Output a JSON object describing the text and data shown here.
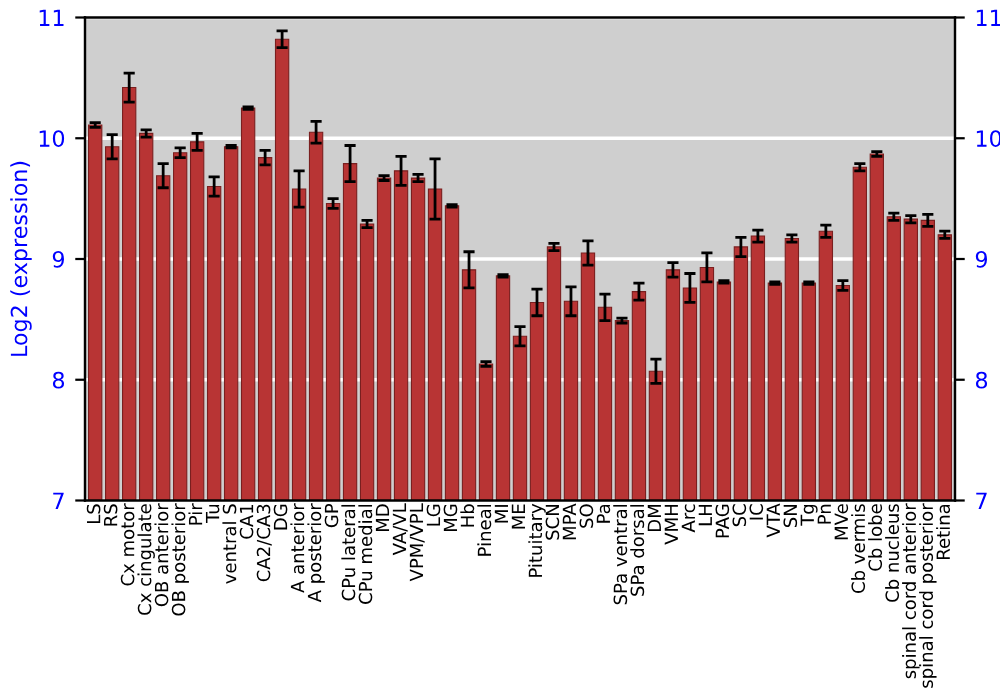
{
  "chart_data": {
    "type": "bar",
    "ylabel": "Log2 (expression)",
    "categories": [
      "LS",
      "RS",
      "Cx motor",
      "Cx cingulate",
      "OB anterior",
      "OB posterior",
      "Pir",
      "Tu",
      "ventral S",
      "CA1",
      "CA2/CA3",
      "DG",
      "A anterior",
      "A posterior",
      "GP",
      "CPu lateral",
      "CPu medial",
      "MD",
      "VA/VL",
      "VPM/VPL",
      "LG",
      "MG",
      "Hb",
      "Pineal",
      "MI",
      "ME",
      "Pituitary",
      "SCN",
      "MPA",
      "SO",
      "Pa",
      "SPa ventral",
      "SPa dorsal",
      "DM",
      "VMH",
      "Arc",
      "LH",
      "PAG",
      "SC",
      "IC",
      "VTA",
      "SN",
      "Tg",
      "Pn",
      "MVe",
      "Cb vermis",
      "Cb lobe",
      "Cb nucleus",
      "spinal cord anterior",
      "spinal cord posterior",
      "Retina"
    ],
    "values": [
      10.11,
      9.93,
      10.42,
      10.04,
      9.69,
      9.88,
      9.97,
      9.6,
      9.93,
      10.25,
      9.84,
      10.82,
      9.58,
      10.05,
      9.46,
      9.79,
      9.29,
      9.67,
      9.73,
      9.67,
      9.58,
      9.44,
      8.91,
      8.13,
      8.86,
      8.36,
      8.64,
      9.1,
      8.65,
      9.05,
      8.6,
      8.49,
      8.73,
      8.07,
      8.91,
      8.76,
      8.93,
      8.81,
      9.1,
      9.19,
      8.8,
      9.17,
      8.8,
      9.23,
      8.78,
      9.76,
      9.87,
      9.35,
      9.33,
      9.32,
      9.2
    ],
    "errors": [
      0.02,
      0.1,
      0.12,
      0.03,
      0.1,
      0.04,
      0.07,
      0.08,
      0.01,
      0.01,
      0.06,
      0.07,
      0.15,
      0.09,
      0.04,
      0.15,
      0.03,
      0.02,
      0.12,
      0.03,
      0.25,
      0.01,
      0.15,
      0.02,
      0.01,
      0.08,
      0.11,
      0.03,
      0.12,
      0.1,
      0.11,
      0.02,
      0.07,
      0.1,
      0.06,
      0.12,
      0.12,
      0.01,
      0.08,
      0.05,
      0.01,
      0.03,
      0.01,
      0.05,
      0.04,
      0.03,
      0.02,
      0.03,
      0.03,
      0.05,
      0.03
    ],
    "color": "#b83434",
    "ylim": [
      7,
      11
    ],
    "yticks": [
      7,
      8,
      9,
      10,
      11
    ],
    "y2lim": [
      7,
      11
    ],
    "y2ticks": [
      7,
      8,
      9,
      10,
      11
    ],
    "grid": "y"
  }
}
